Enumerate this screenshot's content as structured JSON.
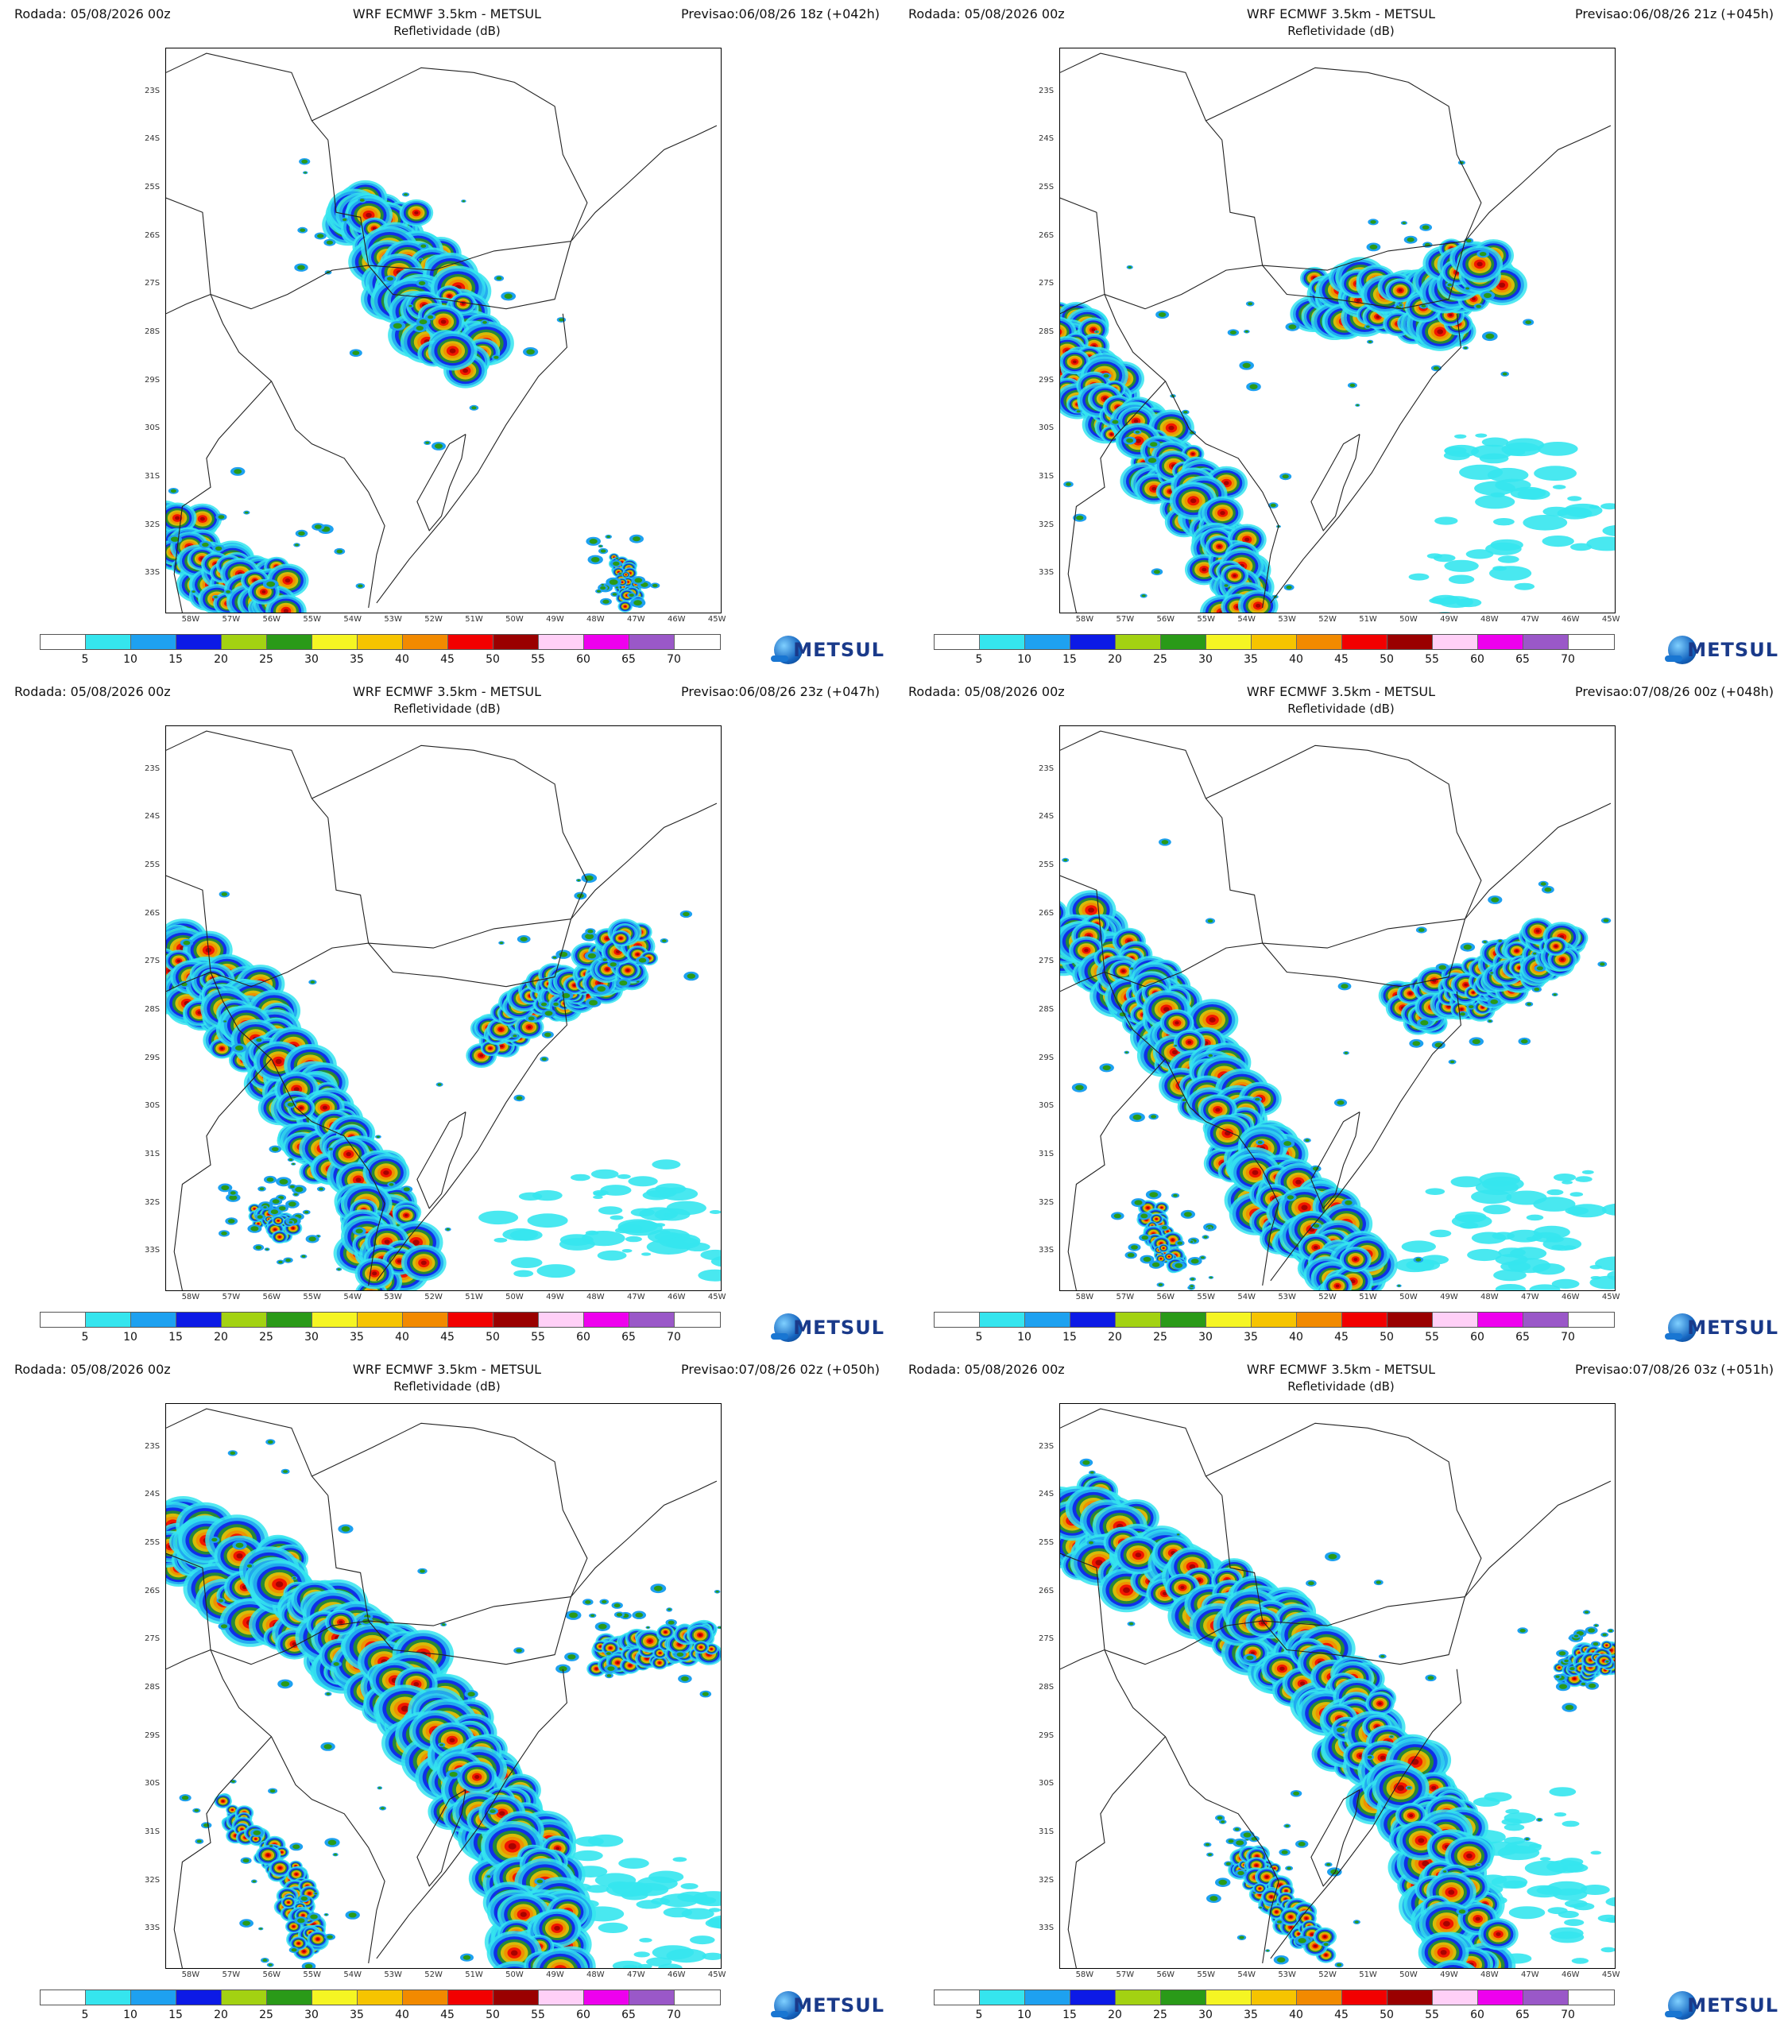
{
  "run_label": "Rodada: 05/08/2026 00z",
  "model_title": "WRF ECMWF 3.5km - METSUL",
  "field_title": "Refletividade (dB)",
  "logo_text": "METSUL",
  "lat_labels": [
    "23S",
    "24S",
    "25S",
    "26S",
    "27S",
    "28S",
    "29S",
    "30S",
    "31S",
    "32S",
    "33S"
  ],
  "lon_labels": [
    "58W",
    "57W",
    "56W",
    "55W",
    "54W",
    "53W",
    "52W",
    "51W",
    "50W",
    "49W",
    "48W",
    "47W",
    "46W",
    "45W"
  ],
  "colorbar": {
    "labels": [
      "5",
      "10",
      "15",
      "20",
      "25",
      "30",
      "35",
      "40",
      "45",
      "50",
      "55",
      "60",
      "65",
      "70"
    ],
    "colors": [
      "#ffffff",
      "#35e5ee",
      "#1ea1f0",
      "#0c1ae6",
      "#a3d212",
      "#2a9a18",
      "#f5f523",
      "#f6c400",
      "#f28a00",
      "#f20000",
      "#9a0000",
      "#ffd0f7",
      "#ee00ee",
      "#9a58c8",
      "#ffffff"
    ]
  },
  "panels": [
    {
      "forecast": "Previsao:06/08/26 18z (+042h)",
      "map_label": "reflectivity-map-042h"
    },
    {
      "forecast": "Previsao:06/08/26 21z (+045h)",
      "map_label": "reflectivity-map-045h"
    },
    {
      "forecast": "Previsao:06/08/26 23z (+047h)",
      "map_label": "reflectivity-map-047h"
    },
    {
      "forecast": "Previsao:07/08/26 00z (+048h)",
      "map_label": "reflectivity-map-048h"
    },
    {
      "forecast": "Previsao:07/08/26 02z (+050h)",
      "map_label": "reflectivity-map-050h"
    },
    {
      "forecast": "Previsao:07/08/26 03z (+051h)",
      "map_label": "reflectivity-map-051h"
    }
  ]
}
